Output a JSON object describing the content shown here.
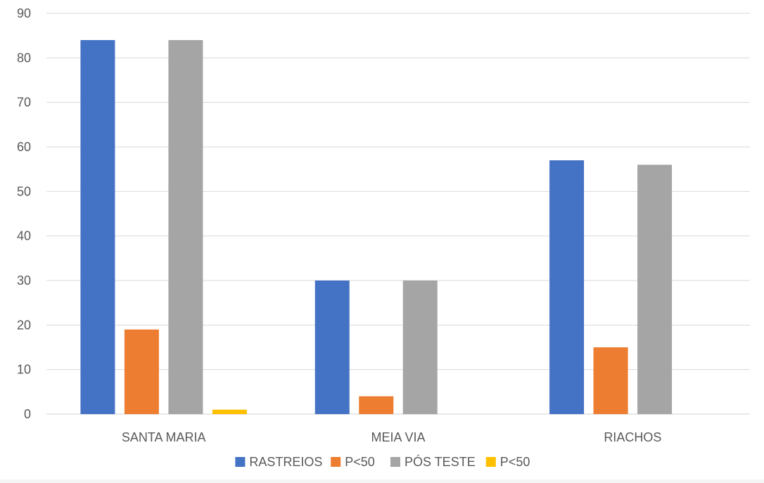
{
  "chart_data": {
    "type": "bar",
    "title": "",
    "xlabel": "",
    "ylabel": "",
    "categories": [
      "SANTA MARIA",
      "MEIA VIA",
      "RIACHOS"
    ],
    "series": [
      {
        "name": "RASTREIOS",
        "color": "#4472C4",
        "values": [
          84,
          30,
          57
        ]
      },
      {
        "name": "P<50",
        "color": "#ED7D31",
        "values": [
          19,
          4,
          15
        ]
      },
      {
        "name": "PÓS TESTE",
        "color": "#A5A5A5",
        "values": [
          84,
          30,
          56
        ]
      },
      {
        "name": "P<50",
        "color": "#FFC000",
        "values": [
          1,
          0,
          0
        ]
      }
    ],
    "ylim": [
      0,
      90
    ],
    "yticks": [
      0,
      10,
      20,
      30,
      40,
      50,
      60,
      70,
      80,
      90
    ],
    "grid": true,
    "legend_position": "bottom"
  }
}
